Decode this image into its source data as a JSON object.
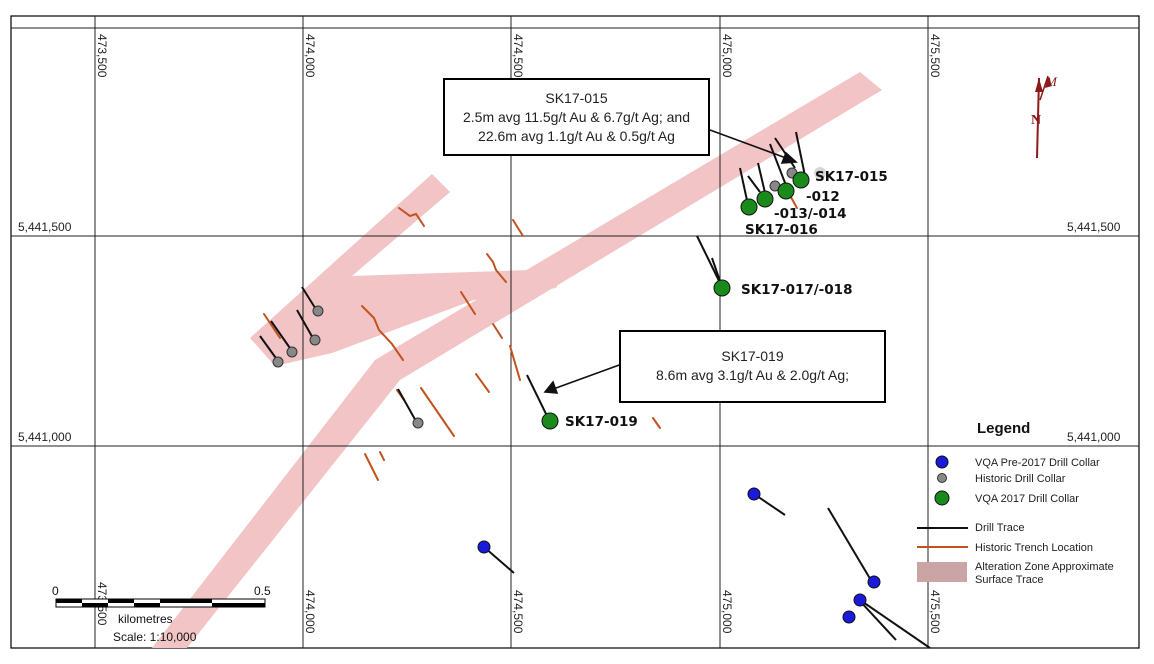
{
  "grid": {
    "eastings": [
      "473,500",
      "474,000",
      "474,500",
      "475,000",
      "475,500"
    ],
    "northings": [
      "5,441,500",
      "5,441,000"
    ]
  },
  "callouts": [
    {
      "id": "sk17-015",
      "title": "SK17-015",
      "lines": [
        "2.5m avg 11.5g/t Au & 6.7g/t Ag; and",
        "22.6m avg 1.1g/t Au & 0.5g/t Ag"
      ]
    },
    {
      "id": "sk17-019",
      "title": "SK17-019",
      "lines": [
        "8.6m avg 3.1g/t Au & 2.0g/t Ag;"
      ]
    }
  ],
  "collar_labels": {
    "sk17_015": "SK17-015",
    "l012": "-012",
    "l013_014": "-013/-014",
    "sk17_016": "SK17-016",
    "sk17_017_018": "SK17-017/-018",
    "sk17_019": "SK17-019"
  },
  "north_arrow": {
    "true_north": "N",
    "magnetic_north": "M"
  },
  "legend": {
    "title": "Legend",
    "items": [
      {
        "symbol": "blue-circle",
        "label": "VQA Pre-2017 Drill Collar"
      },
      {
        "symbol": "grey-circle",
        "label": "Historic Drill Collar"
      },
      {
        "symbol": "green-circle",
        "label": "VQA 2017 Drill Collar"
      },
      {
        "symbol": "black-line",
        "label": "Drill Trace"
      },
      {
        "symbol": "orange-line",
        "label": "Historic Trench Location"
      },
      {
        "symbol": "pink-box",
        "label": "Alteration Zone Approximate",
        "label2": "Surface Trace"
      }
    ]
  },
  "scale_bar": {
    "start": "0",
    "end": "0.5",
    "units": "kilometres",
    "scale": "Scale: 1:10,000"
  },
  "colors": {
    "alteration": "#f2c4c6",
    "trench": "#c0531e",
    "pre2017_collar": "#1a1adc",
    "historic_collar": "#888888",
    "collar_2017": "#1a8a1a"
  }
}
